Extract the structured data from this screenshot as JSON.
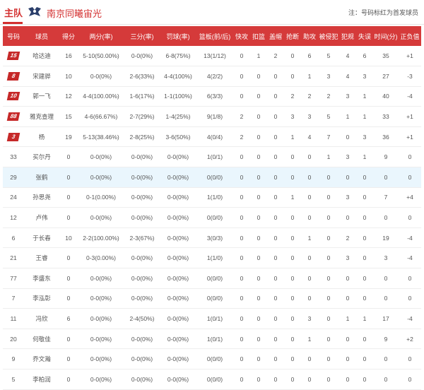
{
  "header": {
    "home_tab": "主队",
    "team_name": "南京同曦宙光",
    "note": "注：号码标红为首发球员"
  },
  "colors": {
    "accent": "#d53a3a",
    "highlight_row": "#eaf6fd"
  },
  "icons": {
    "team_logo": "team-logo-icon"
  },
  "columns": [
    "号码",
    "球员",
    "得分",
    "两分(率)",
    "三分(率)",
    "罚球(率)",
    "篮板(前/后)",
    "快攻",
    "扣篮",
    "盖帽",
    "抢断",
    "助攻",
    "被侵犯",
    "犯规",
    "失误",
    "时间(分)",
    "正负值"
  ],
  "rows": [
    {
      "num": "15",
      "starter": true,
      "name": "哈达迪",
      "pts": "16",
      "two": "5-10(50.00%)",
      "three": "0-0(0%)",
      "ft": "6-8(75%)",
      "reb": "13(1/12)",
      "fb": "0",
      "dunk": "1",
      "blk": "2",
      "stl": "0",
      "ast": "6",
      "fd": "5",
      "pf": "4",
      "to": "6",
      "min": "35",
      "pm": "+1"
    },
    {
      "num": "8",
      "starter": true,
      "name": "宋建骅",
      "pts": "10",
      "two": "0-0(0%)",
      "three": "2-6(33%)",
      "ft": "4-4(100%)",
      "reb": "4(2/2)",
      "fb": "0",
      "dunk": "0",
      "blk": "0",
      "stl": "0",
      "ast": "1",
      "fd": "3",
      "pf": "4",
      "to": "3",
      "min": "27",
      "pm": "-3"
    },
    {
      "num": "10",
      "starter": true,
      "name": "郭一飞",
      "pts": "12",
      "two": "4-4(100.00%)",
      "three": "1-6(17%)",
      "ft": "1-1(100%)",
      "reb": "6(3/3)",
      "fb": "0",
      "dunk": "0",
      "blk": "0",
      "stl": "2",
      "ast": "2",
      "fd": "2",
      "pf": "3",
      "to": "1",
      "min": "40",
      "pm": "-4"
    },
    {
      "num": "88",
      "starter": true,
      "name": "雅克查理",
      "pts": "15",
      "two": "4-6(66.67%)",
      "three": "2-7(29%)",
      "ft": "1-4(25%)",
      "reb": "9(1/8)",
      "fb": "2",
      "dunk": "0",
      "blk": "0",
      "stl": "3",
      "ast": "3",
      "fd": "5",
      "pf": "1",
      "to": "1",
      "min": "33",
      "pm": "+1"
    },
    {
      "num": "3",
      "starter": true,
      "name": "杨",
      "pts": "19",
      "two": "5-13(38.46%)",
      "three": "2-8(25%)",
      "ft": "3-6(50%)",
      "reb": "4(0/4)",
      "fb": "2",
      "dunk": "0",
      "blk": "0",
      "stl": "1",
      "ast": "4",
      "fd": "7",
      "pf": "0",
      "to": "3",
      "min": "36",
      "pm": "+1"
    },
    {
      "num": "33",
      "starter": false,
      "name": "买尔丹",
      "pts": "0",
      "two": "0-0(0%)",
      "three": "0-0(0%)",
      "ft": "0-0(0%)",
      "reb": "1(0/1)",
      "fb": "0",
      "dunk": "0",
      "blk": "0",
      "stl": "0",
      "ast": "0",
      "fd": "1",
      "pf": "3",
      "to": "1",
      "min": "9",
      "pm": "0"
    },
    {
      "num": "29",
      "starter": false,
      "name": "张鹤",
      "pts": "0",
      "two": "0-0(0%)",
      "three": "0-0(0%)",
      "ft": "0-0(0%)",
      "reb": "0(0/0)",
      "fb": "0",
      "dunk": "0",
      "blk": "0",
      "stl": "0",
      "ast": "0",
      "fd": "0",
      "pf": "0",
      "to": "0",
      "min": "0",
      "pm": "0"
    },
    {
      "num": "24",
      "starter": false,
      "name": "孙思尧",
      "pts": "0",
      "two": "0-1(0.00%)",
      "three": "0-0(0%)",
      "ft": "0-0(0%)",
      "reb": "1(1/0)",
      "fb": "0",
      "dunk": "0",
      "blk": "0",
      "stl": "1",
      "ast": "0",
      "fd": "0",
      "pf": "3",
      "to": "0",
      "min": "7",
      "pm": "+4"
    },
    {
      "num": "12",
      "starter": false,
      "name": "卢伟",
      "pts": "0",
      "two": "0-0(0%)",
      "three": "0-0(0%)",
      "ft": "0-0(0%)",
      "reb": "0(0/0)",
      "fb": "0",
      "dunk": "0",
      "blk": "0",
      "stl": "0",
      "ast": "0",
      "fd": "0",
      "pf": "0",
      "to": "0",
      "min": "0",
      "pm": "0"
    },
    {
      "num": "6",
      "starter": false,
      "name": "于长春",
      "pts": "10",
      "two": "2-2(100.00%)",
      "three": "2-3(67%)",
      "ft": "0-0(0%)",
      "reb": "3(0/3)",
      "fb": "0",
      "dunk": "0",
      "blk": "0",
      "stl": "0",
      "ast": "1",
      "fd": "0",
      "pf": "2",
      "to": "0",
      "min": "19",
      "pm": "-4"
    },
    {
      "num": "21",
      "starter": false,
      "name": "王睿",
      "pts": "0",
      "two": "0-3(0.00%)",
      "three": "0-0(0%)",
      "ft": "0-0(0%)",
      "reb": "1(1/0)",
      "fb": "0",
      "dunk": "0",
      "blk": "0",
      "stl": "0",
      "ast": "0",
      "fd": "0",
      "pf": "3",
      "to": "0",
      "min": "3",
      "pm": "-4"
    },
    {
      "num": "77",
      "starter": false,
      "name": "李盛东",
      "pts": "0",
      "two": "0-0(0%)",
      "three": "0-0(0%)",
      "ft": "0-0(0%)",
      "reb": "0(0/0)",
      "fb": "0",
      "dunk": "0",
      "blk": "0",
      "stl": "0",
      "ast": "0",
      "fd": "0",
      "pf": "0",
      "to": "0",
      "min": "0",
      "pm": "0"
    },
    {
      "num": "7",
      "starter": false,
      "name": "李泓彰",
      "pts": "0",
      "two": "0-0(0%)",
      "three": "0-0(0%)",
      "ft": "0-0(0%)",
      "reb": "0(0/0)",
      "fb": "0",
      "dunk": "0",
      "blk": "0",
      "stl": "0",
      "ast": "0",
      "fd": "0",
      "pf": "0",
      "to": "0",
      "min": "0",
      "pm": "0"
    },
    {
      "num": "11",
      "starter": false,
      "name": "冯欣",
      "pts": "6",
      "two": "0-0(0%)",
      "three": "2-4(50%)",
      "ft": "0-0(0%)",
      "reb": "1(0/1)",
      "fb": "0",
      "dunk": "0",
      "blk": "0",
      "stl": "0",
      "ast": "3",
      "fd": "0",
      "pf": "1",
      "to": "1",
      "min": "17",
      "pm": "-4"
    },
    {
      "num": "20",
      "starter": false,
      "name": "何敬佳",
      "pts": "0",
      "two": "0-0(0%)",
      "three": "0-0(0%)",
      "ft": "0-0(0%)",
      "reb": "1(0/1)",
      "fb": "0",
      "dunk": "0",
      "blk": "0",
      "stl": "0",
      "ast": "1",
      "fd": "0",
      "pf": "0",
      "to": "0",
      "min": "9",
      "pm": "+2"
    },
    {
      "num": "9",
      "starter": false,
      "name": "乔文瀚",
      "pts": "0",
      "two": "0-0(0%)",
      "three": "0-0(0%)",
      "ft": "0-0(0%)",
      "reb": "0(0/0)",
      "fb": "0",
      "dunk": "0",
      "blk": "0",
      "stl": "0",
      "ast": "0",
      "fd": "0",
      "pf": "0",
      "to": "0",
      "min": "0",
      "pm": "0"
    },
    {
      "num": "5",
      "starter": false,
      "name": "李柏润",
      "pts": "0",
      "two": "0-0(0%)",
      "three": "0-0(0%)",
      "ft": "0-0(0%)",
      "reb": "0(0/0)",
      "fb": "0",
      "dunk": "0",
      "blk": "0",
      "stl": "0",
      "ast": "0",
      "fd": "0",
      "pf": "0",
      "to": "0",
      "min": "0",
      "pm": "0"
    }
  ]
}
